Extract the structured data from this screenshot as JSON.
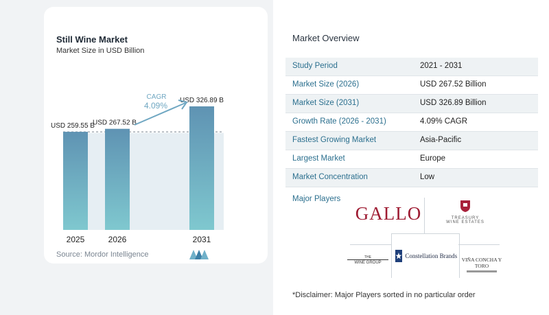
{
  "chart_data": {
    "type": "bar",
    "title": "Still Wine Market",
    "subtitle": "Market Size in USD Billion",
    "categories": [
      "2025",
      "2026",
      "2031"
    ],
    "values": [
      259.55,
      267.52,
      326.89
    ],
    "value_labels": [
      "USD 259.55 B",
      "USD 267.52 B",
      "USD 326.89 B"
    ],
    "cagr_label": "CAGR",
    "cagr_value": "4.09%",
    "source": "Source:  Mordor Intelligence",
    "grid": false
  },
  "overview": {
    "title": "Market Overview",
    "rows": [
      {
        "k": "Study Period",
        "v": "2021 - 2031"
      },
      {
        "k": "Market Size (2026)",
        "v": "USD 267.52 Billion"
      },
      {
        "k": "Market Size (2031)",
        "v": "USD 326.89 Billion"
      },
      {
        "k": "Growth Rate (2026 - 2031)",
        "v": "4.09% CAGR"
      },
      {
        "k": "Fastest Growing Market",
        "v": "Asia-Pacific"
      },
      {
        "k": "Largest Market",
        "v": "Europe"
      },
      {
        "k": "Market Concentration",
        "v": "Low"
      }
    ],
    "players_label": "Major Players",
    "players": {
      "gallo": "GALLO",
      "treasury_line1": "TREASURY",
      "treasury_line2": "WINE ESTATES",
      "wine_group_line1": "THE",
      "wine_group_line2": "WINE GROUP",
      "constellation": "Constellation Brands",
      "concha": "VIÑA CONCHA Y TORO"
    },
    "disclaimer": "*Disclaimer: Major Players sorted in no particular order"
  },
  "colors": {
    "bar_top": "#5f93b3",
    "bar_bottom": "#7fc8cf",
    "accent": "#6fa7c2",
    "key_text": "#2b6f8e",
    "gallo_red": "#9e1b32"
  }
}
